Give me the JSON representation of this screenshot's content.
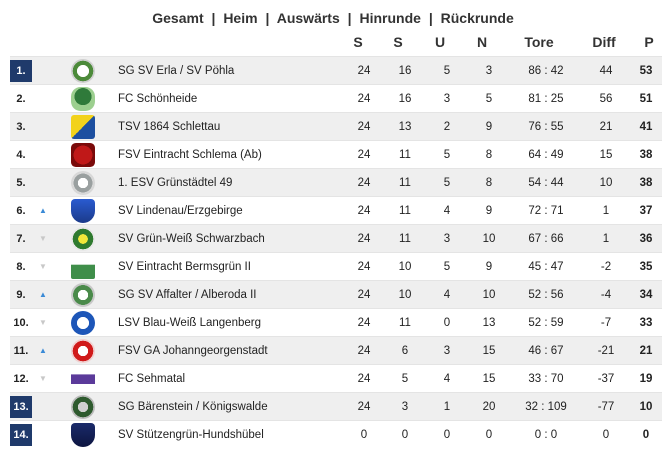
{
  "nav": {
    "items": [
      "Gesamt",
      "Heim",
      "Auswärts",
      "Hinrunde",
      "Rückrunde"
    ],
    "separator": "|"
  },
  "headers": {
    "s1": "S",
    "s2": "S",
    "u": "U",
    "n": "N",
    "tore": "Tore",
    "diff": "Diff",
    "p": "P"
  },
  "colors": {
    "rank_highlight": "#1f3a6b",
    "trend_up": "#3a8ad6",
    "trend_neutral": "#c8c8c8",
    "row_alt": "#efefef"
  },
  "rows": [
    {
      "rank": "1.",
      "highlight": true,
      "trend": "",
      "crest": "green-white-crest",
      "team": "SG SV Erla / SV Pöhla",
      "games": "24",
      "wins": "16",
      "draws": "5",
      "losses": "3",
      "goals": "86 : 42",
      "diff": "44",
      "points": "53"
    },
    {
      "rank": "2.",
      "highlight": false,
      "trend": "",
      "crest": "green-tree-crest",
      "team": "FC Schönheide",
      "games": "24",
      "wins": "16",
      "draws": "3",
      "losses": "5",
      "goals": "81 : 25",
      "diff": "56",
      "points": "51"
    },
    {
      "rank": "3.",
      "highlight": false,
      "trend": "",
      "crest": "blue-yellow-crest",
      "team": "TSV 1864 Schlettau",
      "games": "24",
      "wins": "13",
      "draws": "2",
      "losses": "9",
      "goals": "76 : 55",
      "diff": "21",
      "points": "41"
    },
    {
      "rank": "4.",
      "highlight": false,
      "trend": "",
      "crest": "red-crest",
      "team": "FSV Eintracht Schlema (Ab)",
      "games": "24",
      "wins": "11",
      "draws": "5",
      "losses": "8",
      "goals": "64 : 49",
      "diff": "15",
      "points": "38"
    },
    {
      "rank": "5.",
      "highlight": false,
      "trend": "",
      "crest": "grey-round-crest",
      "team": "1. ESV Grünstädtel 49",
      "games": "24",
      "wins": "11",
      "draws": "5",
      "losses": "8",
      "goals": "54 : 44",
      "diff": "10",
      "points": "38"
    },
    {
      "rank": "6.",
      "highlight": false,
      "trend": "up",
      "crest": "blue-shield-crest",
      "team": "SV Lindenau/Erzgebirge",
      "games": "24",
      "wins": "11",
      "draws": "4",
      "losses": "9",
      "goals": "72 : 71",
      "diff": "1",
      "points": "37"
    },
    {
      "rank": "7.",
      "highlight": false,
      "trend": "down",
      "crest": "green-ball-crest",
      "team": "SV Grün-Weiß Schwarzbach",
      "games": "24",
      "wins": "11",
      "draws": "3",
      "losses": "10",
      "goals": "67 : 66",
      "diff": "1",
      "points": "36"
    },
    {
      "rank": "8.",
      "highlight": false,
      "trend": "down",
      "crest": "green-square-crest",
      "team": "SV Eintracht Bermsgrün II",
      "games": "24",
      "wins": "10",
      "draws": "5",
      "losses": "9",
      "goals": "45 : 47",
      "diff": "-2",
      "points": "35"
    },
    {
      "rank": "9.",
      "highlight": false,
      "trend": "up",
      "crest": "green-grey-crest",
      "team": "SG SV Affalter / Alberoda II",
      "games": "24",
      "wins": "10",
      "draws": "4",
      "losses": "10",
      "goals": "52 : 56",
      "diff": "-4",
      "points": "34"
    },
    {
      "rank": "10.",
      "highlight": false,
      "trend": "down",
      "crest": "blue-white-crest",
      "team": "LSV Blau-Weiß Langenberg",
      "games": "24",
      "wins": "11",
      "draws": "0",
      "losses": "13",
      "goals": "52 : 59",
      "diff": "-7",
      "points": "33"
    },
    {
      "rank": "11.",
      "highlight": false,
      "trend": "up",
      "crest": "red-white-crest",
      "team": "FSV GA Johanngeorgenstadt",
      "games": "24",
      "wins": "6",
      "draws": "3",
      "losses": "15",
      "goals": "46 : 67",
      "diff": "-21",
      "points": "21"
    },
    {
      "rank": "12.",
      "highlight": false,
      "trend": "down",
      "crest": "purple-crest",
      "team": "FC Sehmatal",
      "games": "24",
      "wins": "5",
      "draws": "4",
      "losses": "15",
      "goals": "33 : 70",
      "diff": "-37",
      "points": "19"
    },
    {
      "rank": "13.",
      "highlight": true,
      "trend": "",
      "crest": "dark-green-crest",
      "team": "SG Bärenstein / Königswalde",
      "games": "24",
      "wins": "3",
      "draws": "1",
      "losses": "20",
      "goals": "32 : 109",
      "diff": "-77",
      "points": "10"
    },
    {
      "rank": "14.",
      "highlight": true,
      "trend": "",
      "crest": "navy-shield-crest",
      "team": "SV Stützengrün-Hundshübel",
      "games": "0",
      "wins": "0",
      "draws": "0",
      "losses": "0",
      "goals": "0 : 0",
      "diff": "0",
      "points": "0"
    }
  ]
}
